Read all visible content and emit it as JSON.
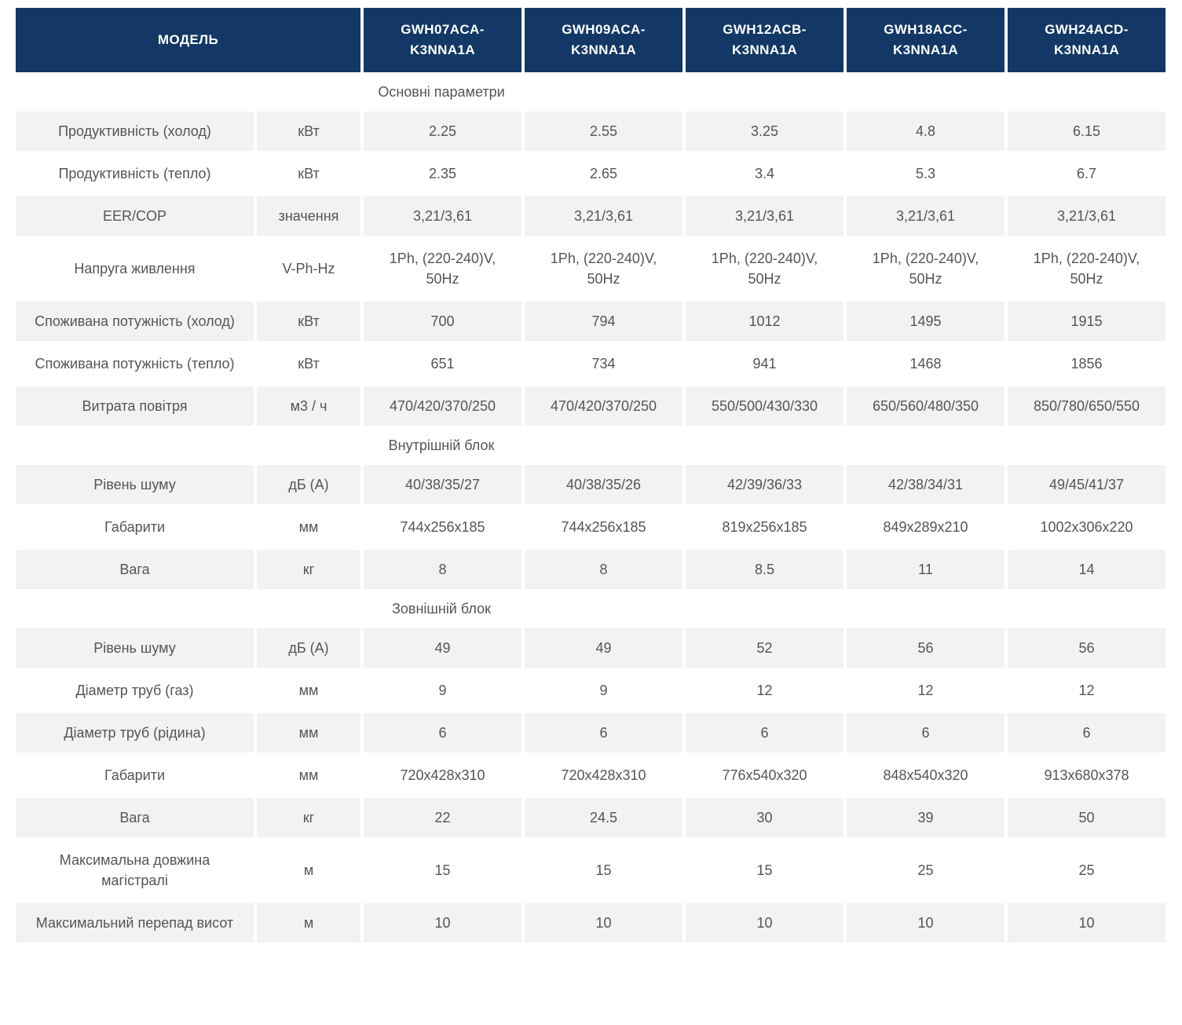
{
  "colors": {
    "header_bg": "#133865",
    "header_text": "#ffffff",
    "row_stripe_bg": "#f2f2f2",
    "body_text": "#555555"
  },
  "table": {
    "model_label": "МОДЕЛЬ",
    "models": [
      {
        "line1": "GWH07ACA-",
        "line2": "K3NNA1A"
      },
      {
        "line1": "GWH09ACA-",
        "line2": "K3NNA1A"
      },
      {
        "line1": "GWH12ACB-",
        "line2": "K3NNA1A"
      },
      {
        "line1": "GWH18ACC-",
        "line2": "K3NNA1A"
      },
      {
        "line1": "GWH24ACD-",
        "line2": "K3NNA1A"
      }
    ],
    "sections": [
      {
        "title": "Основні параметри",
        "rows": [
          {
            "name": "Продуктивність (холод)",
            "unit": "кВт",
            "values": [
              "2.25",
              "2.55",
              "3.25",
              "4.8",
              "6.15"
            ]
          },
          {
            "name": "Продуктивність (тепло)",
            "unit": "кВт",
            "values": [
              "2.35",
              "2.65",
              "3.4",
              "5.3",
              "6.7"
            ]
          },
          {
            "name": "EER/COP",
            "unit": "значення",
            "values": [
              "3,21/3,61",
              "3,21/3,61",
              "3,21/3,61",
              "3,21/3,61",
              "3,21/3,61"
            ]
          },
          {
            "name": "Напруга живлення",
            "unit": "V-Ph-Hz",
            "values": [
              "1Ph, (220-240)V, 50Hz",
              "1Ph, (220-240)V, 50Hz",
              "1Ph, (220-240)V, 50Hz",
              "1Ph, (220-240)V, 50Hz",
              "1Ph, (220-240)V, 50Hz"
            ]
          },
          {
            "name": "Споживана потужність (холод)",
            "unit": "кВт",
            "values": [
              "700",
              "794",
              "1012",
              "1495",
              "1915"
            ]
          },
          {
            "name": "Споживана потужність (тепло)",
            "unit": "кВт",
            "values": [
              "651",
              "734",
              "941",
              "1468",
              "1856"
            ]
          },
          {
            "name": "Витрата повітря",
            "unit": "м3 / ч",
            "values": [
              "470/420/370/250",
              "470/420/370/250",
              "550/500/430/330",
              "650/560/480/350",
              "850/780/650/550"
            ]
          }
        ]
      },
      {
        "title": "Внутрішній блок",
        "rows": [
          {
            "name": "Рівень шуму",
            "unit": "дБ (А)",
            "values": [
              "40/38/35/27",
              "40/38/35/26",
              "42/39/36/33",
              "42/38/34/31",
              "49/45/41/37"
            ]
          },
          {
            "name": "Габарити",
            "unit": "мм",
            "values": [
              "744x256x185",
              "744x256x185",
              "819x256x185",
              "849x289x210",
              "1002x306x220"
            ]
          },
          {
            "name": "Вага",
            "unit": "кг",
            "values": [
              "8",
              "8",
              "8.5",
              "11",
              "14"
            ]
          }
        ]
      },
      {
        "title": "Зовнішній блок",
        "rows": [
          {
            "name": "Рівень шуму",
            "unit": "дБ (А)",
            "values": [
              "49",
              "49",
              "52",
              "56",
              "56"
            ]
          },
          {
            "name": "Діаметр труб (газ)",
            "unit": "мм",
            "values": [
              "9",
              "9",
              "12",
              "12",
              "12"
            ]
          },
          {
            "name": "Діаметр труб (рідина)",
            "unit": "мм",
            "values": [
              "6",
              "6",
              "6",
              "6",
              "6"
            ]
          },
          {
            "name": "Габарити",
            "unit": "мм",
            "values": [
              "720x428x310",
              "720x428x310",
              "776x540x320",
              "848x540x320",
              "913x680x378"
            ]
          },
          {
            "name": "Вага",
            "unit": "кг",
            "values": [
              "22",
              "24.5",
              "30",
              "39",
              "50"
            ]
          },
          {
            "name": "Максимальна довжина магістралі",
            "unit": "м",
            "values": [
              "15",
              "15",
              "15",
              "25",
              "25"
            ]
          },
          {
            "name": "Максимальний перепад висот",
            "unit": "м",
            "values": [
              "10",
              "10",
              "10",
              "10",
              "10"
            ]
          }
        ]
      }
    ]
  }
}
